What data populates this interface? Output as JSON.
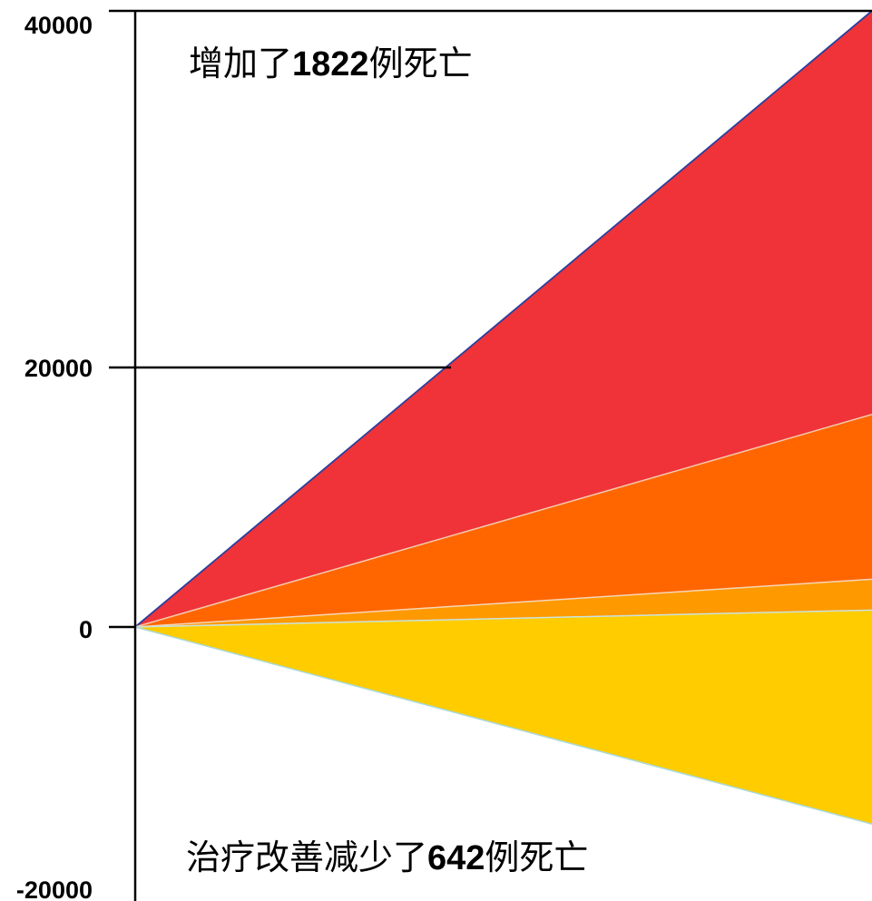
{
  "chart_data": {
    "type": "area",
    "ylim": [
      -20000,
      40000
    ],
    "y_ticks": [
      "40000",
      "20000",
      "0",
      "-20000"
    ],
    "y_tick_values": [
      40000,
      20000,
      0,
      -20000
    ],
    "x": [
      0,
      1
    ],
    "series": [
      {
        "color": "#ef3338",
        "values": [
          0,
          40000
        ]
      },
      {
        "color": "#ff6600",
        "values": [
          0,
          13800
        ]
      },
      {
        "color": "#ff9900",
        "values": [
          0,
          3100
        ]
      },
      {
        "color": "#ffcc00",
        "values": [
          0,
          1100
        ]
      },
      {
        "color": "#ffcc00",
        "values": [
          0,
          -12800
        ]
      }
    ],
    "annotations": {
      "top": {
        "prefix": "增加了",
        "number": "1822",
        "suffix": "例死亡"
      },
      "bottom": {
        "prefix": "治疗改善减少了",
        "number": "642",
        "suffix": "例死亡"
      }
    },
    "grid": false
  }
}
